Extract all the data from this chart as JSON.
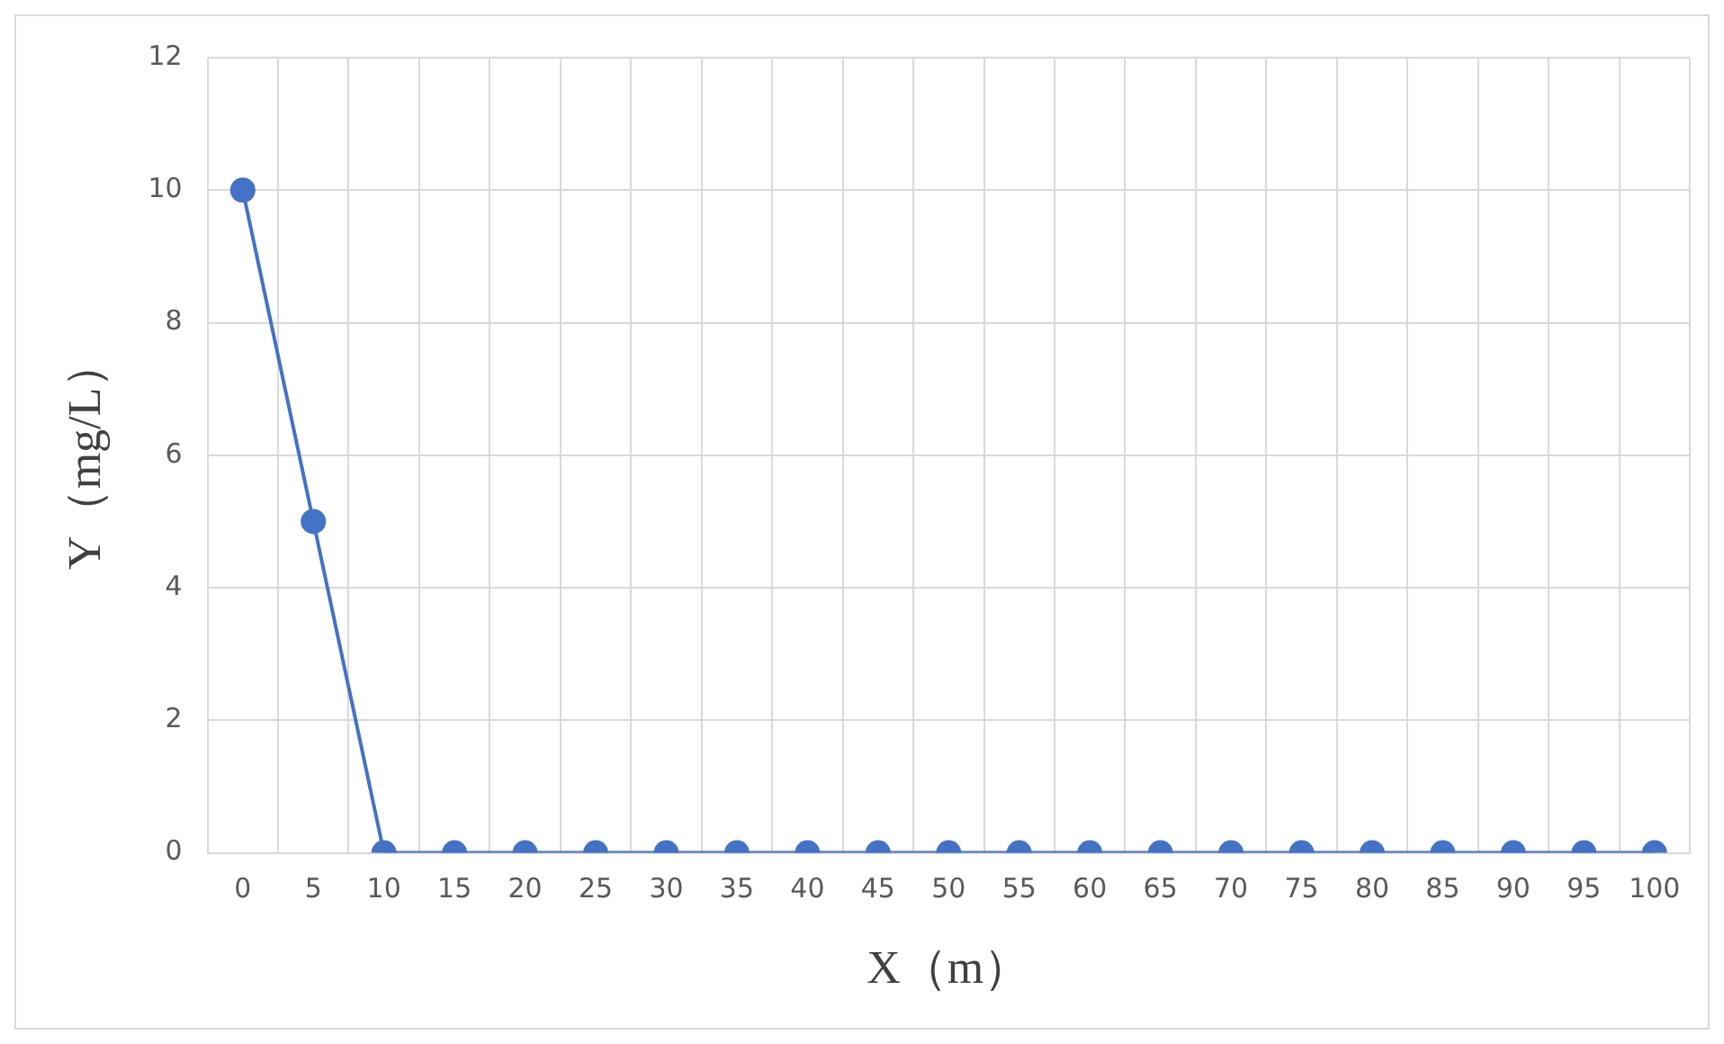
{
  "chart_data": {
    "type": "line",
    "xlabel": "X（m）",
    "ylabel": "Y（mg/L）",
    "categories": [
      "0",
      "5",
      "10",
      "15",
      "20",
      "25",
      "30",
      "35",
      "40",
      "45",
      "50",
      "55",
      "60",
      "65",
      "70",
      "75",
      "80",
      "85",
      "90",
      "95",
      "100"
    ],
    "series": [
      {
        "color": "#4472c4",
        "values": [
          10,
          5,
          0,
          0,
          0,
          0,
          0,
          0,
          0,
          0,
          0,
          0,
          0,
          0,
          0,
          0,
          0,
          0,
          0,
          0,
          0
        ]
      }
    ],
    "ylim": [
      0,
      12
    ],
    "yticks": [
      0,
      2,
      4,
      6,
      8,
      10,
      12
    ],
    "grid": true,
    "marker": "circle",
    "line_style": "solid",
    "legend": false
  }
}
